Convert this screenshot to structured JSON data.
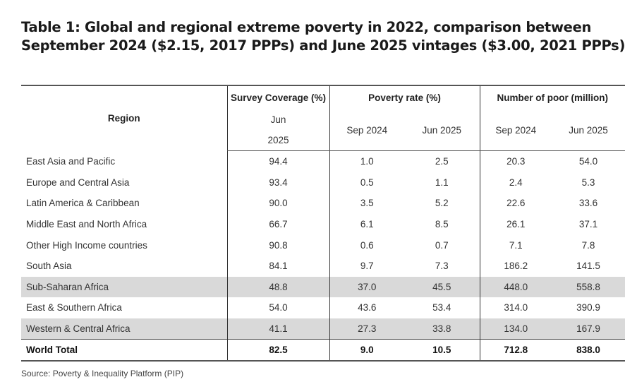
{
  "title": "Table 1: Global and regional extreme poverty in 2022, comparison between September 2024 ($2.15, 2017 PPPs) and June 2025 vintages ($3.00, 2021 PPPs)",
  "headers": {
    "region": "Region",
    "survey_coverage": "Survey Coverage (%)",
    "survey_sub_line1": "Jun",
    "survey_sub_line2": "2025",
    "poverty_rate": "Poverty rate (%)",
    "number_poor": "Number of poor (million)",
    "sep2024": "Sep 2024",
    "jun2025": "Jun 2025"
  },
  "rows": [
    {
      "region": "East Asia and Pacific",
      "coverage": "94.4",
      "rate_sep": "1.0",
      "rate_jun": "2.5",
      "poor_sep": "20.3",
      "poor_jun": "54.0"
    },
    {
      "region": "Europe and Central Asia",
      "coverage": "93.4",
      "rate_sep": "0.5",
      "rate_jun": "1.1",
      "poor_sep": "2.4",
      "poor_jun": "5.3"
    },
    {
      "region": "Latin America & Caribbean",
      "coverage": "90.0",
      "rate_sep": "3.5",
      "rate_jun": "5.2",
      "poor_sep": "22.6",
      "poor_jun": "33.6"
    },
    {
      "region": "Middle East and North Africa",
      "coverage": "66.7",
      "rate_sep": "6.1",
      "rate_jun": "8.5",
      "poor_sep": "26.1",
      "poor_jun": "37.1"
    },
    {
      "region": "Other High Income countries",
      "coverage": "90.8",
      "rate_sep": "0.6",
      "rate_jun": "0.7",
      "poor_sep": "7.1",
      "poor_jun": "7.8"
    },
    {
      "region": "South Asia",
      "coverage": "84.1",
      "rate_sep": "9.7",
      "rate_jun": "7.3",
      "poor_sep": "186.2",
      "poor_jun": "141.5"
    },
    {
      "region": "Sub-Saharan Africa",
      "coverage": "48.8",
      "rate_sep": "37.0",
      "rate_jun": "45.5",
      "poor_sep": "448.0",
      "poor_jun": "558.8"
    },
    {
      "region": "East & Southern Africa",
      "coverage": "54.0",
      "rate_sep": "43.6",
      "rate_jun": "53.4",
      "poor_sep": "314.0",
      "poor_jun": "390.9"
    },
    {
      "region": "Western & Central Africa",
      "coverage": "41.1",
      "rate_sep": "27.3",
      "rate_jun": "33.8",
      "poor_sep": "134.0",
      "poor_jun": "167.9"
    }
  ],
  "total": {
    "region": "World Total",
    "coverage": "82.5",
    "rate_sep": "9.0",
    "rate_jun": "10.5",
    "poor_sep": "712.8",
    "poor_jun": "838.0"
  },
  "shaded_rows": [
    6,
    8
  ],
  "shade_color": "#d9d9d9",
  "source": "Source: Poverty & Inequality Platform (PIP)"
}
